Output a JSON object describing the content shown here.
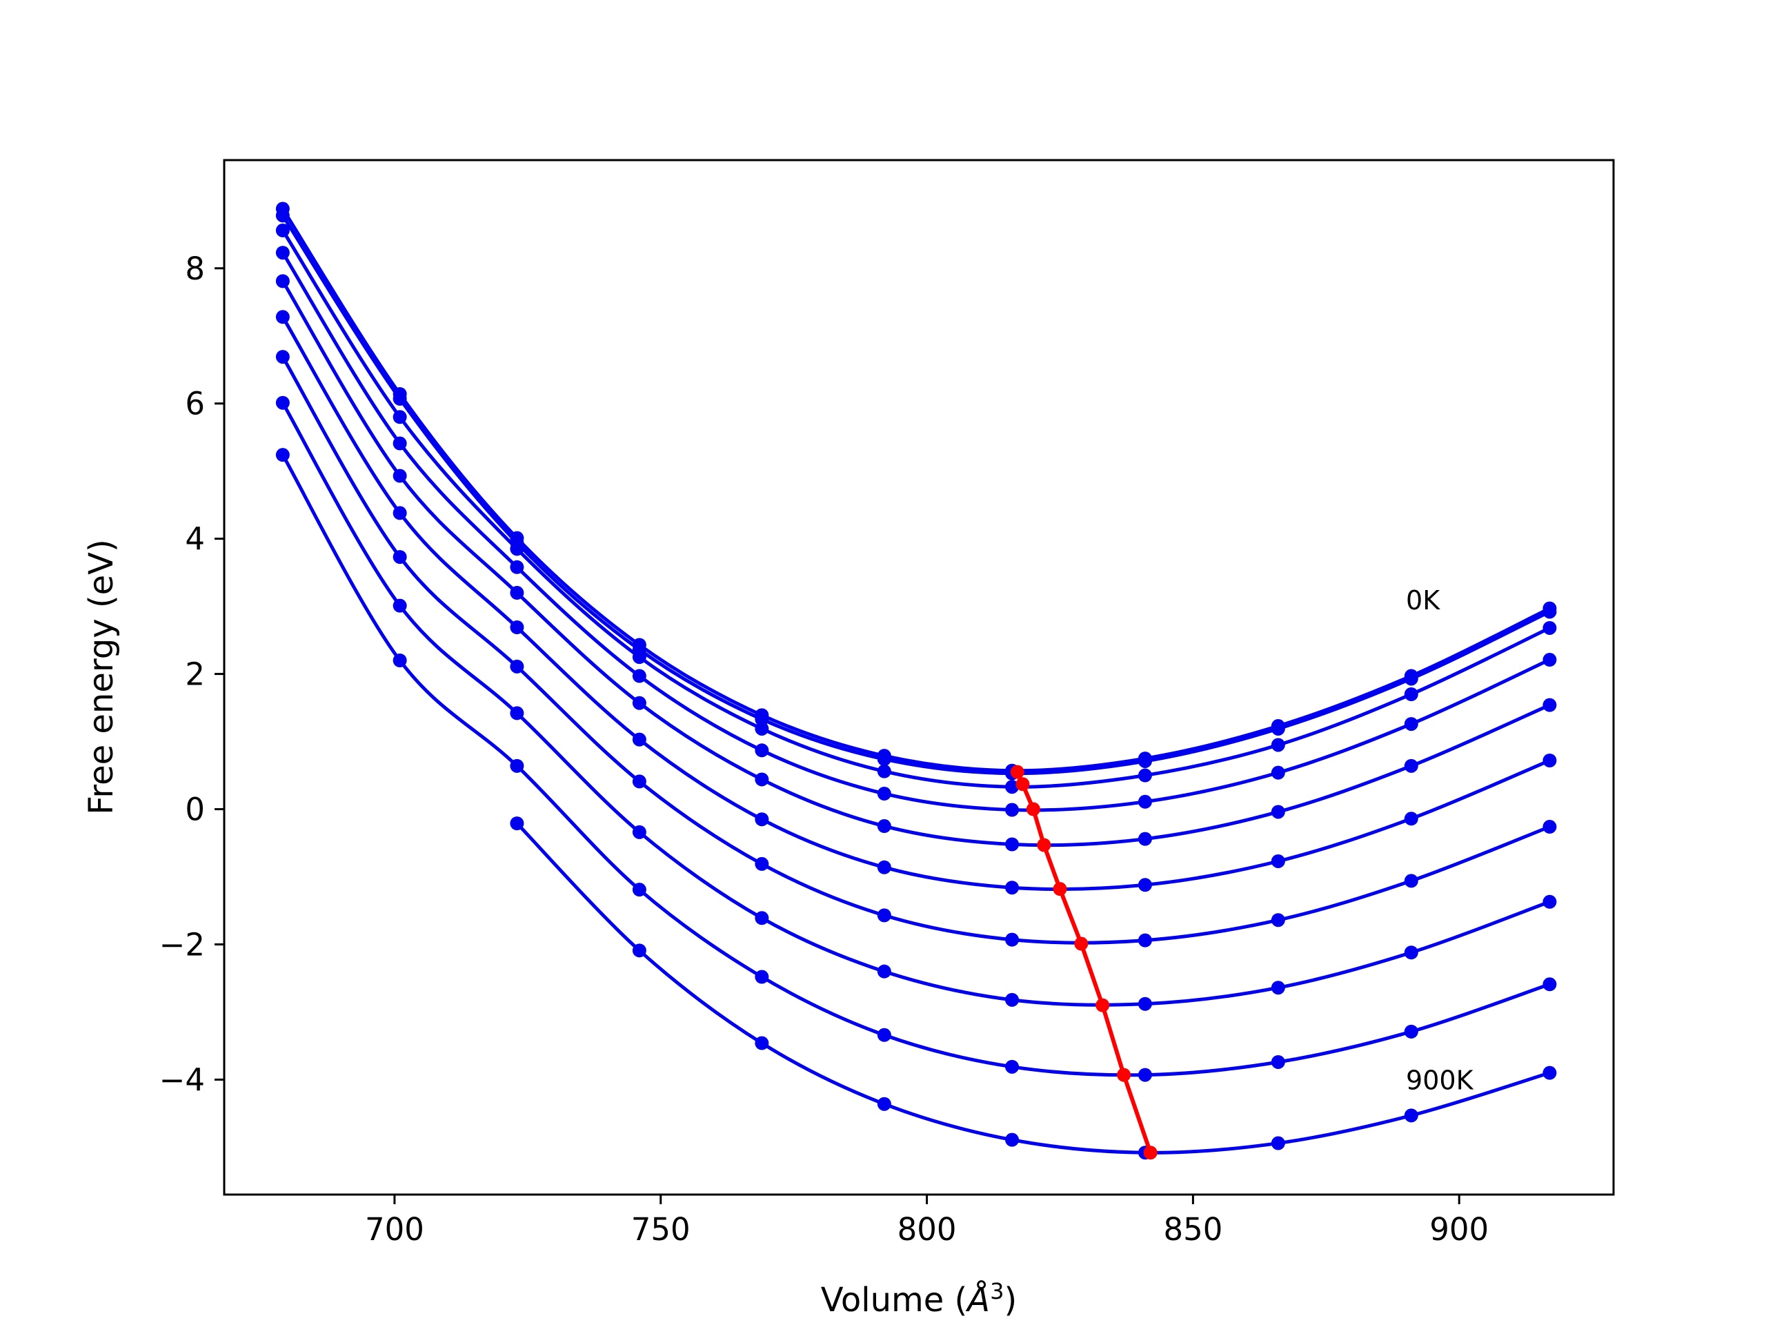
{
  "chart_data": {
    "type": "line",
    "xlabel": "Volume (",
    "xlabel_unit": "Å",
    "xlabel_exp": "3",
    "xlabel_close": ")",
    "ylabel": "Free energy (eV)",
    "xlim": [
      668,
      929
    ],
    "ylim": [
      -5.7,
      9.6
    ],
    "x_ticks": [
      700,
      750,
      800,
      850,
      900
    ],
    "x_tick_labels": [
      "700",
      "750",
      "800",
      "850",
      "900"
    ],
    "y_ticks": [
      -4,
      -2,
      0,
      2,
      4,
      6,
      8
    ],
    "y_tick_labels": [
      "−4",
      "−2",
      "0",
      "2",
      "4",
      "6",
      "8"
    ],
    "grid": false,
    "annotations": [
      {
        "text": "0K",
        "x": 890,
        "y": 3.1
      },
      {
        "text": "900K",
        "x": 890,
        "y": -4.0
      }
    ],
    "curve_color": "#0000ee",
    "min_line_color": "#ff0000",
    "x": [
      679,
      701,
      723,
      746,
      769,
      792,
      816,
      841,
      866,
      891,
      917
    ],
    "series": [
      {
        "values": [
          8.88,
          6.14,
          4.01,
          2.43,
          1.39,
          0.79,
          0.57,
          0.75,
          1.23,
          1.97,
          2.97
        ]
      },
      {
        "values": [
          8.78,
          6.07,
          3.94,
          2.36,
          1.33,
          0.74,
          0.53,
          0.71,
          1.19,
          1.93,
          2.92
        ]
      },
      {
        "values": [
          8.56,
          5.8,
          3.85,
          2.25,
          1.19,
          0.56,
          0.33,
          0.5,
          0.95,
          1.7,
          2.68
        ]
      },
      {
        "values": [
          8.23,
          5.41,
          3.58,
          1.97,
          0.87,
          0.23,
          -0.01,
          0.11,
          0.54,
          1.26,
          2.21
        ]
      },
      {
        "values": [
          7.81,
          4.93,
          3.2,
          1.57,
          0.44,
          -0.25,
          -0.52,
          -0.44,
          -0.04,
          0.64,
          1.54
        ]
      },
      {
        "values": [
          7.28,
          4.38,
          2.69,
          1.03,
          -0.15,
          -0.86,
          -1.16,
          -1.12,
          -0.77,
          -0.14,
          0.72
        ]
      },
      {
        "values": [
          6.69,
          3.73,
          2.11,
          0.41,
          -0.81,
          -1.57,
          -1.93,
          -1.94,
          -1.64,
          -1.06,
          -0.26
        ]
      },
      {
        "values": [
          6.01,
          3.01,
          1.42,
          -0.34,
          -1.61,
          -2.4,
          -2.82,
          -2.88,
          -2.64,
          -2.12,
          -1.37
        ]
      },
      {
        "values": [
          5.24,
          2.2,
          0.64,
          -1.19,
          -2.48,
          -3.34,
          -3.81,
          -3.93,
          -3.74,
          -3.29,
          -2.59
        ]
      },
      {
        "values": [
          null,
          null,
          -0.21,
          -2.09,
          -3.46,
          -4.36,
          -4.89,
          -5.08,
          -4.94,
          -4.53,
          -3.9
        ]
      }
    ],
    "minima": {
      "x": [
        817,
        818,
        820,
        822,
        825,
        829,
        833,
        837,
        842
      ],
      "y": [
        0.55,
        0.37,
        0.0,
        -0.53,
        -1.18,
        -1.99,
        -2.9,
        -3.93,
        -5.08
      ]
    }
  }
}
